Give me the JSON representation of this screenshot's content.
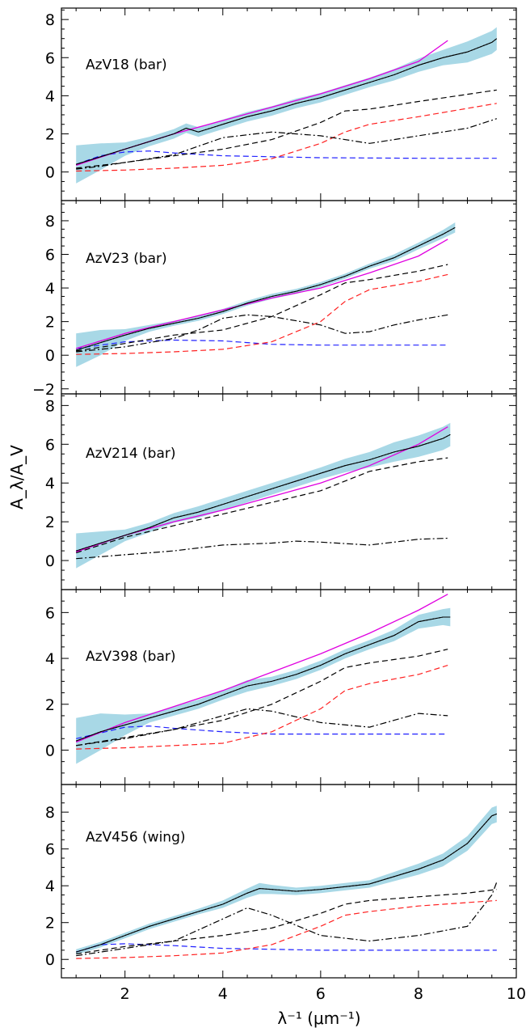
{
  "chart_data": {
    "type": "line",
    "xlabel": "λ⁻¹ (μm⁻¹)",
    "ylabel": "A_λ/A_V",
    "xlim": [
      0.7,
      10
    ],
    "x_ticks": [
      2,
      4,
      6,
      8,
      10
    ],
    "grid": false,
    "legend": "none",
    "colors": {
      "band": "#a8d8e6",
      "magenta": "#e000e0",
      "red": "#ff2020",
      "blue": "#2020ff",
      "black": "#000000"
    },
    "panels": [
      {
        "label": "AzV18 (bar)",
        "ylim": [
          -1.5,
          8.6
        ],
        "y_ticks": [
          0,
          2,
          4,
          6,
          8
        ],
        "observed": {
          "x": [
            1.0,
            1.5,
            2.0,
            2.5,
            3.0,
            3.25,
            3.5,
            4.0,
            4.5,
            5.0,
            5.5,
            6.0,
            6.5,
            7.0,
            7.5,
            8.0,
            8.5,
            9.0,
            9.5,
            9.6
          ],
          "y": [
            0.4,
            0.8,
            1.2,
            1.6,
            2.0,
            2.3,
            2.1,
            2.5,
            2.9,
            3.2,
            3.6,
            3.9,
            4.3,
            4.7,
            5.1,
            5.6,
            6.0,
            6.3,
            6.8,
            7.0
          ],
          "band": [
            1.0,
            0.7,
            0.35,
            0.25,
            0.25,
            0.25,
            0.25,
            0.25,
            0.25,
            0.25,
            0.25,
            0.25,
            0.25,
            0.25,
            0.3,
            0.35,
            0.4,
            0.55,
            0.6,
            0.6
          ]
        },
        "model": {
          "x": [
            1.0,
            2.0,
            3.0,
            4.0,
            5.0,
            6.0,
            7.0,
            8.0,
            8.6
          ],
          "y": [
            0.35,
            1.2,
            2.0,
            2.7,
            3.4,
            4.1,
            4.9,
            5.8,
            6.9
          ]
        },
        "component_black_dash": {
          "x": [
            1.0,
            1.5,
            2.0,
            3.0,
            4.0,
            5.0,
            6.0,
            6.5,
            7.0,
            8.0,
            9.6
          ],
          "y": [
            0.2,
            0.35,
            0.5,
            0.85,
            1.2,
            1.7,
            2.6,
            3.2,
            3.3,
            3.7,
            4.3
          ]
        },
        "component_red_dash": {
          "x": [
            1.0,
            2.0,
            3.0,
            4.0,
            5.0,
            6.0,
            6.5,
            7.0,
            8.0,
            9.6
          ],
          "y": [
            0.05,
            0.1,
            0.2,
            0.35,
            0.7,
            1.5,
            2.1,
            2.5,
            2.9,
            3.6
          ]
        },
        "component_blue_dash": {
          "x": [
            1.0,
            1.5,
            2.0,
            2.5,
            3.0,
            4.0,
            5.0,
            6.0,
            8.0,
            9.6
          ],
          "y": [
            0.4,
            0.85,
            1.05,
            1.1,
            1.0,
            0.85,
            0.8,
            0.75,
            0.72,
            0.72
          ]
        },
        "component_black_dashdot": {
          "x": [
            1.0,
            1.5,
            2.0,
            3.0,
            4.0,
            5.0,
            6.0,
            7.0,
            8.0,
            9.0,
            9.6
          ],
          "y": [
            0.15,
            0.3,
            0.5,
            0.9,
            1.8,
            2.1,
            1.9,
            1.5,
            1.9,
            2.3,
            2.8
          ]
        }
      },
      {
        "label": "AzV23 (bar)",
        "ylim": [
          -2.3,
          9.2
        ],
        "y_ticks": [
          -2,
          0,
          2,
          4,
          6,
          8
        ],
        "observed": {
          "x": [
            1.0,
            1.5,
            2.0,
            2.5,
            3.0,
            3.5,
            4.0,
            4.5,
            5.0,
            5.5,
            6.0,
            6.5,
            7.0,
            7.5,
            8.0,
            8.5,
            8.75
          ],
          "y": [
            0.3,
            0.75,
            1.2,
            1.6,
            1.9,
            2.2,
            2.6,
            3.1,
            3.5,
            3.8,
            4.2,
            4.7,
            5.3,
            5.8,
            6.5,
            7.2,
            7.6
          ],
          "band": [
            1.0,
            0.75,
            0.35,
            0.2,
            0.15,
            0.15,
            0.15,
            0.15,
            0.15,
            0.15,
            0.15,
            0.15,
            0.15,
            0.2,
            0.2,
            0.25,
            0.3
          ]
        },
        "model": {
          "x": [
            1.0,
            2.0,
            3.0,
            4.0,
            5.0,
            6.0,
            7.0,
            8.0,
            8.6
          ],
          "y": [
            0.4,
            1.3,
            2.0,
            2.7,
            3.4,
            4.0,
            4.9,
            5.9,
            6.9
          ]
        },
        "component_black_dash": {
          "x": [
            1.0,
            2.0,
            3.0,
            4.0,
            5.0,
            6.0,
            6.5,
            7.0,
            8.0,
            8.6
          ],
          "y": [
            0.25,
            0.7,
            1.2,
            1.5,
            2.3,
            3.6,
            4.3,
            4.5,
            5.0,
            5.4
          ]
        },
        "component_red_dash": {
          "x": [
            1.0,
            2.0,
            3.0,
            4.0,
            5.0,
            6.0,
            6.5,
            7.0,
            8.0,
            8.6
          ],
          "y": [
            0.05,
            0.1,
            0.2,
            0.35,
            0.8,
            2.0,
            3.2,
            3.9,
            4.4,
            4.8
          ]
        },
        "component_blue_dash": {
          "x": [
            1.0,
            2.0,
            3.0,
            4.0,
            5.0,
            6.0,
            7.0,
            8.0,
            8.6
          ],
          "y": [
            0.4,
            0.8,
            0.9,
            0.85,
            0.65,
            0.6,
            0.6,
            0.6,
            0.6
          ]
        },
        "component_black_dashdot": {
          "x": [
            1.0,
            2.0,
            3.0,
            3.5,
            4.0,
            4.5,
            5.0,
            6.0,
            6.5,
            7.0,
            7.5,
            8.0,
            8.6
          ],
          "y": [
            0.2,
            0.5,
            1.0,
            1.5,
            2.2,
            2.4,
            2.3,
            1.8,
            1.3,
            1.4,
            1.8,
            2.1,
            2.4
          ]
        }
      },
      {
        "label": "AzV214 (bar)",
        "ylim": [
          -1.5,
          8.6
        ],
        "y_ticks": [
          0,
          2,
          4,
          6,
          8
        ],
        "observed": {
          "x": [
            1.0,
            1.5,
            2.0,
            2.5,
            3.0,
            3.5,
            4.0,
            4.5,
            5.0,
            5.5,
            6.0,
            6.5,
            7.0,
            7.5,
            8.0,
            8.5,
            8.65
          ],
          "y": [
            0.5,
            0.9,
            1.3,
            1.7,
            2.2,
            2.5,
            2.9,
            3.3,
            3.7,
            4.1,
            4.5,
            4.9,
            5.2,
            5.6,
            5.9,
            6.3,
            6.5
          ],
          "band": [
            0.9,
            0.6,
            0.3,
            0.25,
            0.25,
            0.3,
            0.3,
            0.3,
            0.3,
            0.3,
            0.3,
            0.35,
            0.4,
            0.5,
            0.55,
            0.6,
            0.6
          ]
        },
        "model": {
          "x": [
            1.0,
            2.0,
            3.0,
            4.0,
            5.0,
            6.0,
            7.0,
            8.0,
            8.6
          ],
          "y": [
            0.45,
            1.3,
            2.0,
            2.6,
            3.3,
            4.0,
            4.9,
            6.0,
            6.9
          ]
        },
        "component_black_dash": {
          "x": [
            1.0,
            2.0,
            3.0,
            4.0,
            5.0,
            6.0,
            7.0,
            8.0,
            8.6
          ],
          "y": [
            0.4,
            1.2,
            1.8,
            2.4,
            3.0,
            3.6,
            4.6,
            5.1,
            5.3
          ]
        },
        "component_black_dashdot": {
          "x": [
            1.0,
            2.0,
            3.0,
            4.0,
            5.0,
            5.5,
            6.0,
            7.0,
            8.0,
            8.6
          ],
          "y": [
            0.1,
            0.3,
            0.5,
            0.8,
            0.9,
            1.0,
            0.95,
            0.8,
            1.1,
            1.15
          ]
        }
      },
      {
        "label": "AzV398 (bar)",
        "ylim": [
          -1.5,
          7.0
        ],
        "y_ticks": [
          0,
          2,
          4,
          6
        ],
        "observed": {
          "x": [
            1.0,
            1.5,
            2.0,
            2.5,
            3.0,
            3.5,
            4.0,
            4.5,
            5.0,
            5.5,
            6.0,
            6.5,
            7.0,
            7.5,
            8.0,
            8.5,
            8.65
          ],
          "y": [
            0.4,
            0.8,
            1.1,
            1.4,
            1.7,
            2.0,
            2.4,
            2.8,
            3.0,
            3.3,
            3.7,
            4.2,
            4.6,
            5.0,
            5.6,
            5.8,
            5.8
          ],
          "band": [
            1.0,
            0.8,
            0.45,
            0.2,
            0.2,
            0.2,
            0.2,
            0.25,
            0.2,
            0.2,
            0.2,
            0.2,
            0.2,
            0.25,
            0.3,
            0.35,
            0.4
          ]
        },
        "model": {
          "x": [
            1.0,
            2.0,
            3.0,
            4.0,
            5.0,
            6.0,
            7.0,
            8.0,
            8.6
          ],
          "y": [
            0.35,
            1.2,
            1.9,
            2.6,
            3.4,
            4.2,
            5.1,
            6.1,
            6.8
          ]
        },
        "component_black_dash": {
          "x": [
            1.0,
            2.0,
            3.0,
            4.0,
            5.0,
            6.0,
            6.5,
            7.0,
            8.0,
            8.6
          ],
          "y": [
            0.2,
            0.55,
            0.9,
            1.3,
            2.0,
            3.0,
            3.6,
            3.8,
            4.1,
            4.4
          ]
        },
        "component_red_dash": {
          "x": [
            1.0,
            2.0,
            3.0,
            4.0,
            5.0,
            6.0,
            6.5,
            7.0,
            8.0,
            8.6
          ],
          "y": [
            0.05,
            0.1,
            0.2,
            0.3,
            0.8,
            1.8,
            2.6,
            2.9,
            3.3,
            3.7
          ]
        },
        "component_blue_dash": {
          "x": [
            1.0,
            2.0,
            2.5,
            3.0,
            4.0,
            5.0,
            6.0,
            8.0,
            8.6
          ],
          "y": [
            0.5,
            1.0,
            1.05,
            0.95,
            0.8,
            0.7,
            0.7,
            0.7,
            0.7
          ]
        },
        "component_black_dashdot": {
          "x": [
            1.0,
            2.0,
            3.0,
            4.0,
            4.5,
            5.0,
            6.0,
            7.0,
            8.0,
            8.6
          ],
          "y": [
            0.2,
            0.5,
            0.9,
            1.5,
            1.8,
            1.7,
            1.2,
            1.0,
            1.6,
            1.5
          ]
        }
      },
      {
        "label": "AzV456 (wing)",
        "ylim": [
          -1.0,
          9.5
        ],
        "y_ticks": [
          0,
          2,
          4,
          6,
          8
        ],
        "observed": {
          "x": [
            1.0,
            1.5,
            2.0,
            2.5,
            3.0,
            3.5,
            4.0,
            4.5,
            4.75,
            5.0,
            5.5,
            6.0,
            6.5,
            7.0,
            7.5,
            8.0,
            8.5,
            9.0,
            9.5,
            9.6
          ],
          "y": [
            0.4,
            0.8,
            1.3,
            1.8,
            2.2,
            2.6,
            3.0,
            3.6,
            3.85,
            3.8,
            3.7,
            3.8,
            3.95,
            4.1,
            4.5,
            4.9,
            5.4,
            6.3,
            7.8,
            7.9
          ],
          "band": [
            0.15,
            0.15,
            0.15,
            0.15,
            0.15,
            0.15,
            0.2,
            0.25,
            0.3,
            0.25,
            0.2,
            0.2,
            0.2,
            0.2,
            0.25,
            0.3,
            0.35,
            0.4,
            0.45,
            0.45
          ]
        },
        "component_black_dash": {
          "x": [
            1.0,
            2.0,
            3.0,
            4.0,
            5.0,
            6.0,
            6.5,
            7.0,
            8.0,
            9.0,
            9.6
          ],
          "y": [
            0.3,
            0.7,
            1.0,
            1.3,
            1.7,
            2.5,
            3.0,
            3.2,
            3.4,
            3.6,
            3.8
          ]
        },
        "component_red_dash": {
          "x": [
            1.0,
            2.0,
            3.0,
            4.0,
            5.0,
            6.0,
            6.5,
            7.0,
            8.0,
            9.6
          ],
          "y": [
            0.05,
            0.1,
            0.2,
            0.35,
            0.8,
            1.8,
            2.4,
            2.6,
            2.9,
            3.2
          ]
        },
        "component_blue_dash": {
          "x": [
            1.0,
            1.5,
            2.0,
            3.0,
            4.0,
            5.0,
            6.0,
            8.0,
            9.6
          ],
          "y": [
            0.4,
            0.8,
            0.85,
            0.75,
            0.6,
            0.55,
            0.5,
            0.5,
            0.5
          ]
        },
        "component_black_dashdot": {
          "x": [
            1.0,
            2.0,
            3.0,
            4.0,
            4.5,
            5.0,
            6.0,
            7.0,
            8.0,
            9.0,
            9.5,
            9.6
          ],
          "y": [
            0.2,
            0.6,
            1.0,
            2.2,
            2.8,
            2.4,
            1.3,
            1.0,
            1.3,
            1.8,
            3.5,
            4.2
          ]
        }
      }
    ]
  }
}
